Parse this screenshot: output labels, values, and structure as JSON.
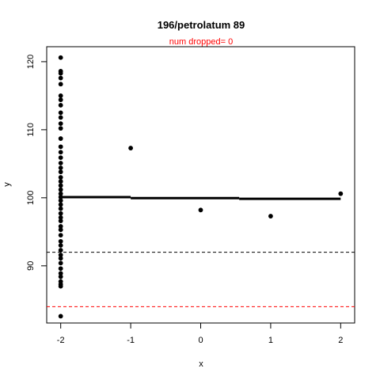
{
  "chart_data": {
    "type": "scatter",
    "title": "196/petrolatum 89",
    "subtitle": "num dropped= 0",
    "subtitle_color": "#ff0000",
    "xlabel": "x",
    "ylabel": "y",
    "xlim": [
      -2.2,
      2.2
    ],
    "ylim": [
      81.6,
      122.2
    ],
    "x_ticks": [
      -2,
      -1,
      0,
      1,
      2
    ],
    "y_ticks": [
      90,
      100,
      110,
      120
    ],
    "x_tick_labels": [
      "-2",
      "-1",
      "0",
      "1",
      "2"
    ],
    "y_tick_labels": [
      "90",
      "100",
      "110",
      "120"
    ],
    "point_color": "#000000",
    "points": [
      {
        "x": -2,
        "y": 82.6
      },
      {
        "x": -2,
        "y": 87.0
      },
      {
        "x": -2,
        "y": 87.3
      },
      {
        "x": -2,
        "y": 87.7
      },
      {
        "x": -2,
        "y": 88.4
      },
      {
        "x": -2,
        "y": 88.9
      },
      {
        "x": -2,
        "y": 89.6
      },
      {
        "x": -2,
        "y": 90.4
      },
      {
        "x": -2,
        "y": 91.1
      },
      {
        "x": -2,
        "y": 91.6
      },
      {
        "x": -2,
        "y": 92.3
      },
      {
        "x": -2,
        "y": 93.0
      },
      {
        "x": -2,
        "y": 93.6
      },
      {
        "x": -2,
        "y": 94.5
      },
      {
        "x": -2,
        "y": 95.3
      },
      {
        "x": -2,
        "y": 95.8
      },
      {
        "x": -2,
        "y": 96.6
      },
      {
        "x": -2,
        "y": 97.1
      },
      {
        "x": -2,
        "y": 97.7
      },
      {
        "x": -2,
        "y": 98.4
      },
      {
        "x": -2,
        "y": 99.0
      },
      {
        "x": -2,
        "y": 99.6
      },
      {
        "x": -2,
        "y": 100.1
      },
      {
        "x": -2,
        "y": 100.6
      },
      {
        "x": -2,
        "y": 101.2
      },
      {
        "x": -2,
        "y": 101.8
      },
      {
        "x": -2,
        "y": 102.4
      },
      {
        "x": -2,
        "y": 103.0
      },
      {
        "x": -2,
        "y": 103.8
      },
      {
        "x": -2,
        "y": 104.4
      },
      {
        "x": -2,
        "y": 105.1
      },
      {
        "x": -2,
        "y": 105.9
      },
      {
        "x": -2,
        "y": 106.7
      },
      {
        "x": -2,
        "y": 107.5
      },
      {
        "x": -2,
        "y": 108.7
      },
      {
        "x": -2,
        "y": 110.2
      },
      {
        "x": -2,
        "y": 110.9
      },
      {
        "x": -2,
        "y": 111.8
      },
      {
        "x": -2,
        "y": 112.5
      },
      {
        "x": -2,
        "y": 113.6
      },
      {
        "x": -2,
        "y": 114.4
      },
      {
        "x": -2,
        "y": 115.0
      },
      {
        "x": -2,
        "y": 116.7
      },
      {
        "x": -2,
        "y": 117.6
      },
      {
        "x": -2,
        "y": 118.3
      },
      {
        "x": -2,
        "y": 118.6
      },
      {
        "x": -2,
        "y": 120.6
      },
      {
        "x": -1,
        "y": 107.3
      },
      {
        "x": 0,
        "y": 98.2
      },
      {
        "x": 1,
        "y": 97.3
      },
      {
        "x": 2,
        "y": 100.6
      }
    ],
    "fit_line": {
      "color": "#000000",
      "segments": [
        {
          "x": [
            -2.0,
            -1.0
          ],
          "y": [
            100.1,
            100.1
          ]
        },
        {
          "x": [
            -1.0,
            0.55
          ],
          "y": [
            99.95,
            99.95
          ]
        },
        {
          "x": [
            0.55,
            2.0
          ],
          "y": [
            99.85,
            99.85
          ]
        }
      ]
    },
    "reference_lines": [
      {
        "y": 92.0,
        "color": "#000000",
        "style": "dashed"
      },
      {
        "y": 84.0,
        "color": "#ff0000",
        "style": "dashed"
      }
    ],
    "grid": false,
    "legend": "none"
  }
}
